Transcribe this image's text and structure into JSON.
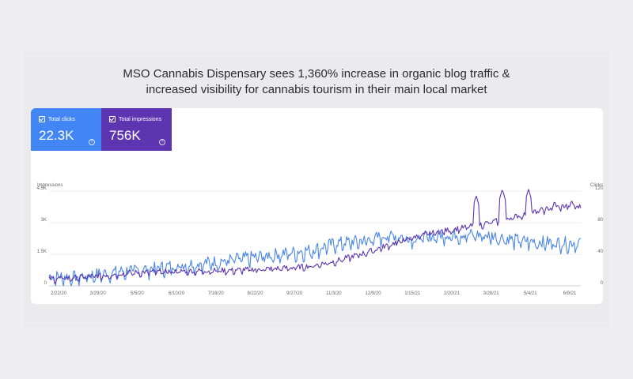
{
  "headline": {
    "line1": "MSO Cannabis Dispensary sees 1,360% increase in organic blog traffic &",
    "line2": "increased visibility for cannabis tourism in their main local market"
  },
  "metrics": {
    "clicks": {
      "label": "Total clicks",
      "value": "22.3K",
      "color": "#4285f4"
    },
    "impressions": {
      "label": "Total impressions",
      "value": "756K",
      "color": "#5e35b1"
    }
  },
  "chart_data": {
    "type": "line",
    "left_axis": {
      "label": "Impressions",
      "ticks": [
        "0",
        "1.5K",
        "3K",
        "4.5K"
      ],
      "ylim": [
        0,
        4500
      ]
    },
    "right_axis": {
      "label": "Clicks",
      "ticks": [
        "0",
        "40",
        "80",
        "120"
      ],
      "ylim": [
        0,
        120
      ]
    },
    "x_ticks": [
      "2/22/20",
      "3/29/20",
      "5/5/20",
      "6/10/20",
      "7/16/20",
      "8/22/20",
      "9/27/20",
      "11/3/20",
      "12/9/20",
      "1/15/21",
      "2/20/21",
      "3/28/21",
      "5/4/21",
      "6/9/21"
    ],
    "series": [
      {
        "name": "Clicks",
        "axis": "right",
        "color": "#4a86e8",
        "trend": [
          [
            0,
            10
          ],
          [
            3,
            9
          ],
          [
            6,
            13
          ],
          [
            9,
            17
          ],
          [
            12,
            20
          ],
          [
            15,
            24
          ],
          [
            18,
            27
          ],
          [
            21,
            31
          ],
          [
            24,
            35
          ],
          [
            27,
            39
          ],
          [
            30,
            43
          ],
          [
            33,
            52
          ],
          [
            36,
            55
          ],
          [
            39,
            62
          ],
          [
            42,
            58
          ],
          [
            45,
            62
          ],
          [
            48,
            63
          ],
          [
            51,
            61
          ],
          [
            54,
            55
          ],
          [
            57,
            53
          ],
          [
            60,
            52
          ],
          [
            61,
            54
          ]
        ],
        "noise": 9
      },
      {
        "name": "Impressions",
        "axis": "left",
        "color": "#5e35b1",
        "trend": [
          [
            0,
            300
          ],
          [
            3,
            350
          ],
          [
            6,
            450
          ],
          [
            9,
            580
          ],
          [
            12,
            620
          ],
          [
            15,
            650
          ],
          [
            18,
            680
          ],
          [
            21,
            700
          ],
          [
            24,
            750
          ],
          [
            27,
            800
          ],
          [
            30,
            900
          ],
          [
            33,
            1150
          ],
          [
            36,
            1500
          ],
          [
            39,
            1900
          ],
          [
            42,
            2300
          ],
          [
            45,
            2550
          ],
          [
            48,
            2750
          ],
          [
            51,
            3000
          ],
          [
            54,
            3300
          ],
          [
            57,
            3600
          ],
          [
            60,
            3800
          ],
          [
            61,
            3700
          ]
        ],
        "noise": 150,
        "spikes": [
          [
            49,
            4300
          ],
          [
            52,
            4600
          ],
          [
            55,
            4600
          ],
          [
            58,
            4050
          ],
          [
            60,
            4050
          ]
        ]
      }
    ]
  }
}
